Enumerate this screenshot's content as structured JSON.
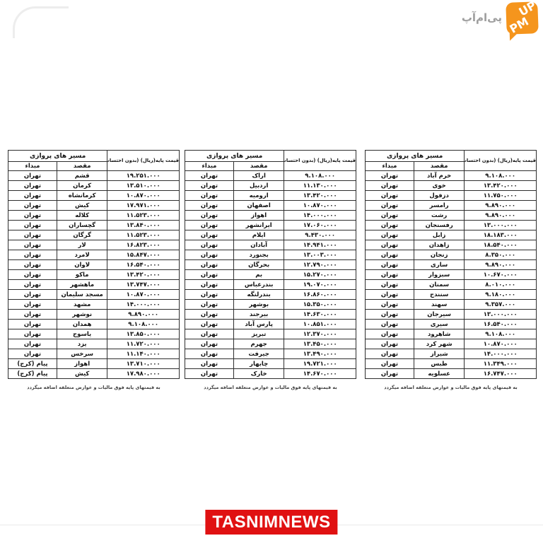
{
  "colors": {
    "pmup_orange": "#F5951D",
    "pmup_text_gray": "#9E9E9E",
    "tasnim_red": "#E01112",
    "table_border": "#2E2E2E"
  },
  "pmup_logo": {
    "persian_text": "پی‌ام‌آپ",
    "box_line1": "UP",
    "box_line2": "PM"
  },
  "tasnim": {
    "label": "TASNIMNEWS"
  },
  "table_common": {
    "route_header": "مسیر های پروازی",
    "origin_label": "مبداء",
    "dest_label": "مقصد",
    "price_header": "قیمت پایه(ریال)\n(بدون احتساب مالیات\nو عوارض متعلقه)",
    "footnote": "به قیمتهای پایه فوق مالیات و عوارض متعلقه اضافه میگردد"
  },
  "tables": [
    {
      "position": "left",
      "rows": [
        {
          "origin": "تهران",
          "dest": "قشم",
          "price": "۱۹.۲۵۱.۰۰۰"
        },
        {
          "origin": "تهران",
          "dest": "کرمان",
          "price": "۱۳.۵۱۰.۰۰۰"
        },
        {
          "origin": "تهران",
          "dest": "کرمانشاه",
          "price": "۱۰.۸۷۰.۰۰۰"
        },
        {
          "origin": "تهران",
          "dest": "کیش",
          "price": "۱۷.۹۷۱.۰۰۰"
        },
        {
          "origin": "تهران",
          "dest": "کلاله",
          "price": "۱۱.۵۲۳.۰۰۰"
        },
        {
          "origin": "تهران",
          "dest": "گچساران",
          "price": "۱۳.۸۴۰.۰۰۰"
        },
        {
          "origin": "تهران",
          "dest": "گرگان",
          "price": "۱۱.۵۲۳.۰۰۰"
        },
        {
          "origin": "تهران",
          "dest": "لار",
          "price": "۱۶.۸۲۳.۰۰۰"
        },
        {
          "origin": "تهران",
          "dest": "لامرد",
          "price": "۱۵.۸۴۷.۰۰۰"
        },
        {
          "origin": "تهران",
          "dest": "لاوان",
          "price": "۱۶.۵۴۰.۰۰۰"
        },
        {
          "origin": "تهران",
          "dest": "ماکو",
          "price": "۱۳.۴۲۰.۰۰۰"
        },
        {
          "origin": "تهران",
          "dest": "ماهشهر",
          "price": "۱۳.۷۴۷.۰۰۰"
        },
        {
          "origin": "تهران",
          "dest": "مسجد سلیمان",
          "price": "۱۰.۸۷۰.۰۰۰"
        },
        {
          "origin": "تهران",
          "dest": "مشهد",
          "price": "۱۴.۰۰۰.۰۰۰"
        },
        {
          "origin": "تهران",
          "dest": "نوشهر",
          "price": "۹.۸۹۰.۰۰۰"
        },
        {
          "origin": "تهران",
          "dest": "همدان",
          "price": "۹.۱۰۸.۰۰۰"
        },
        {
          "origin": "تهران",
          "dest": "یاسوج",
          "price": "۱۳.۸۵۰.۰۰۰"
        },
        {
          "origin": "تهران",
          "dest": "یزد",
          "price": "۱۱.۷۲۰.۰۰۰"
        },
        {
          "origin": "تهران",
          "dest": "سرخس",
          "price": "۱۱.۱۴۰.۰۰۰"
        },
        {
          "origin": "پیام (کرج)",
          "dest": "اهواز",
          "price": "۱۳.۷۱۰.۰۰۰"
        },
        {
          "origin": "پیام (کرج)",
          "dest": "کیش",
          "price": "۱۷.۹۸۰.۰۰۰"
        }
      ]
    },
    {
      "position": "center",
      "rows": [
        {
          "origin": "تهران",
          "dest": "اراک",
          "price": "۹.۱۰۸.۰۰۰"
        },
        {
          "origin": "تهران",
          "dest": "اردبیل",
          "price": "۱۱.۱۳۰.۰۰۰"
        },
        {
          "origin": "تهران",
          "dest": "ارومیه",
          "price": "۱۳.۴۲۰.۰۰۰"
        },
        {
          "origin": "تهران",
          "dest": "اصفهان",
          "price": "۱۰.۸۷۰.۰۰۰"
        },
        {
          "origin": "تهران",
          "dest": "اهواز",
          "price": "۱۴.۰۰۰.۰۰۰"
        },
        {
          "origin": "تهران",
          "dest": "ایرانشهر",
          "price": "۱۷.۰۶۰.۰۰۰"
        },
        {
          "origin": "تهران",
          "dest": "ایلام",
          "price": "۹.۴۳۰.۰۰۰"
        },
        {
          "origin": "تهران",
          "dest": "آبادان",
          "price": "۱۴.۹۴۱.۰۰۰"
        },
        {
          "origin": "تهران",
          "dest": "بجنورد",
          "price": "۱۳.۰۰۳.۰۰۰"
        },
        {
          "origin": "تهران",
          "dest": "بحرگان",
          "price": "۱۲.۷۹۰.۰۰۰"
        },
        {
          "origin": "تهران",
          "dest": "بم",
          "price": "۱۵.۲۷۰.۰۰۰"
        },
        {
          "origin": "تهران",
          "dest": "بندرعباس",
          "price": "۱۹.۰۷۰.۰۰۰"
        },
        {
          "origin": "تهران",
          "dest": "بندرلنگه",
          "price": "۱۶.۸۶۰.۰۰۰"
        },
        {
          "origin": "تهران",
          "dest": "بوشهر",
          "price": "۱۵.۳۵۰.۰۰۰"
        },
        {
          "origin": "تهران",
          "dest": "بیرجند",
          "price": "۱۴.۶۳۰.۰۰۰"
        },
        {
          "origin": "تهران",
          "dest": "پارس آباد",
          "price": "۱۰.۸۵۱.۰۰۰"
        },
        {
          "origin": "تهران",
          "dest": "تبریز",
          "price": "۱۲.۳۷۰.۰۰۰"
        },
        {
          "origin": "تهران",
          "dest": "جهرم",
          "price": "۱۳.۴۵۰.۰۰۰"
        },
        {
          "origin": "تهران",
          "dest": "جیرفت",
          "price": "۱۳.۴۹۰.۰۰۰"
        },
        {
          "origin": "تهران",
          "dest": "چابهار",
          "price": "۱۹.۷۲۱.۰۰۰"
        },
        {
          "origin": "تهران",
          "dest": "خارک",
          "price": "۱۴.۶۷۰.۰۰۰"
        }
      ]
    },
    {
      "position": "right",
      "rows": [
        {
          "origin": "تهران",
          "dest": "خرم آباد",
          "price": "۹.۱۰۸.۰۰۰"
        },
        {
          "origin": "تهران",
          "dest": "خوی",
          "price": "۱۳.۴۲۰.۰۰۰"
        },
        {
          "origin": "تهران",
          "dest": "دزفول",
          "price": "۱۱.۷۵۰.۰۰۰"
        },
        {
          "origin": "تهران",
          "dest": "رامسر",
          "price": "۹.۸۹۰.۰۰۰"
        },
        {
          "origin": "تهران",
          "dest": "رشت",
          "price": "۹.۸۹۰.۰۰۰"
        },
        {
          "origin": "تهران",
          "dest": "رفسنجان",
          "price": "۱۳.۰۰۰.۰۰۰"
        },
        {
          "origin": "تهران",
          "dest": "زابل",
          "price": "۱۸.۱۸۳.۰۰۰"
        },
        {
          "origin": "تهران",
          "dest": "زاهدان",
          "price": "۱۸.۵۴۰.۰۰۰"
        },
        {
          "origin": "تهران",
          "dest": "زنجان",
          "price": "۸.۳۵۰.۰۰۰"
        },
        {
          "origin": "تهران",
          "dest": "ساری",
          "price": "۹.۸۹۰.۰۰۰"
        },
        {
          "origin": "تهران",
          "dest": "سبزوار",
          "price": "۱۰.۶۷۰.۰۰۰"
        },
        {
          "origin": "تهران",
          "dest": "سمنان",
          "price": "۸.۰۱۰.۰۰۰"
        },
        {
          "origin": "تهران",
          "dest": "سنندج",
          "price": "۹.۱۸۰.۰۰۰"
        },
        {
          "origin": "تهران",
          "dest": "سهند",
          "price": "۹.۳۵۷.۰۰۰"
        },
        {
          "origin": "تهران",
          "dest": "سیرجان",
          "price": "۱۳.۰۰۰.۰۰۰"
        },
        {
          "origin": "تهران",
          "dest": "سیری",
          "price": "۱۶.۵۴۰.۰۰۰"
        },
        {
          "origin": "تهران",
          "dest": "شاهرود",
          "price": "۹.۱۰۸.۰۰۰"
        },
        {
          "origin": "تهران",
          "dest": "شهر کرد",
          "price": "۱۰.۸۷۰.۰۰۰"
        },
        {
          "origin": "تهران",
          "dest": "شیراز",
          "price": "۱۴.۰۰۰.۰۰۰"
        },
        {
          "origin": "تهران",
          "dest": "طبس",
          "price": "۱۱.۳۴۹.۰۰۰"
        },
        {
          "origin": "تهران",
          "dest": "عسلویه",
          "price": "۱۶.۷۴۷.۰۰۰"
        }
      ]
    }
  ]
}
